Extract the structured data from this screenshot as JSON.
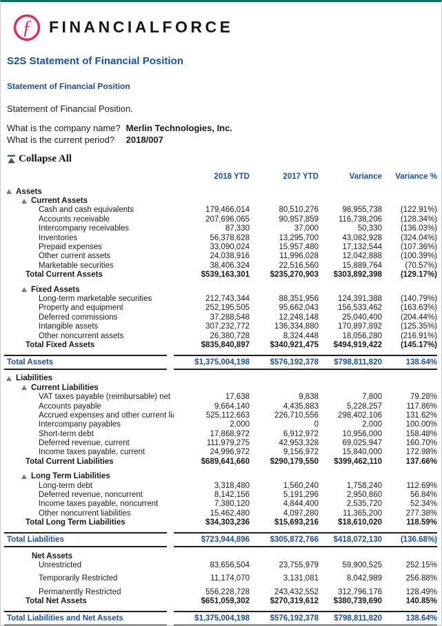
{
  "colors": {
    "accent_blue": "#1c4f9c",
    "logo_pink": "#e62a5c",
    "top_bar_teal": "#0b7267",
    "triangle_gray": "#6e7f91"
  },
  "brand": {
    "wordmark": "FINANCIALFORCE",
    "logo_icon": "financialforce-f-circle"
  },
  "page": {
    "title": "S2S Statement of Financial Position",
    "subtitle": "Statement of Financial Position",
    "description": "Statement of Financial Position.",
    "questions": [
      {
        "q": "What is the company name?",
        "a": "Merlin Technologies, Inc."
      },
      {
        "q": "What is the current period?",
        "a": "2018/007"
      }
    ],
    "collapse_all_label": "Collapse All"
  },
  "table": {
    "columns": [
      "2018 YTD",
      "2017 YTD",
      "Variance",
      "Variance %"
    ],
    "rows": [
      {
        "type": "section",
        "label": "Assets",
        "values": [
          "",
          "",
          "",
          ""
        ]
      },
      {
        "type": "subsection",
        "label": "Current Assets",
        "values": [
          "",
          "",
          "",
          ""
        ]
      },
      {
        "type": "item",
        "label": "Cash and cash equivalents",
        "values": [
          "179,466,014",
          "80,510,276",
          "98,955,738",
          "(122.91%)"
        ]
      },
      {
        "type": "item",
        "label": "Accounts receivable",
        "values": [
          "207,696,065",
          "90,957,859",
          "116,738,206",
          "(128.34%)"
        ]
      },
      {
        "type": "item",
        "label": "Intercompany receivables",
        "values": [
          "87,330",
          "37,000",
          "50,330",
          "(136.03%)"
        ]
      },
      {
        "type": "item",
        "label": "Inventories",
        "values": [
          "56,378,628",
          "13,295,700",
          "43,082,928",
          "(324.04%)"
        ]
      },
      {
        "type": "item",
        "label": "Prepaid expenses",
        "values": [
          "33,090,024",
          "15,957,480",
          "17,132,544",
          "(107.36%)"
        ]
      },
      {
        "type": "item",
        "label": "Other current assets",
        "values": [
          "24,038,916",
          "11,996,028",
          "12,042,888",
          "(100.39%)"
        ]
      },
      {
        "type": "item",
        "label": "Marketable securities",
        "values": [
          "38,406,324",
          "22,516,560",
          "15,889,764",
          "(70.57%)"
        ]
      },
      {
        "type": "total",
        "label": "Total Current Assets",
        "values": [
          "$539,163,301",
          "$235,270,903",
          "$303,892,398",
          "(129.17%)"
        ]
      },
      {
        "type": "spacer"
      },
      {
        "type": "subsection",
        "label": "Fixed Assets",
        "values": [
          "",
          "",
          "",
          ""
        ]
      },
      {
        "type": "item",
        "label": "Long-term marketable securities",
        "values": [
          "212,743,344",
          "88,351,956",
          "124,391,388",
          "(140.79%)"
        ]
      },
      {
        "type": "item",
        "label": "Property and equipment",
        "values": [
          "252,195,505",
          "95,662,043",
          "156,533,462",
          "(163.63%)"
        ]
      },
      {
        "type": "item",
        "label": "Deferred commissions",
        "values": [
          "37,288,548",
          "12,248,148",
          "25,040,400",
          "(204.44%)"
        ]
      },
      {
        "type": "item",
        "label": "Intangible assets",
        "values": [
          "307,232,772",
          "136,334,880",
          "170,897,892",
          "(125.35%)"
        ]
      },
      {
        "type": "item",
        "label": "Other noncurrent assets",
        "values": [
          "26,380,728",
          "8,324,448",
          "18,056,280",
          "(216.91%)"
        ]
      },
      {
        "type": "total",
        "label": "Total Fixed Assets",
        "values": [
          "$835,840,897",
          "$340,921,475",
          "$494,919,422",
          "(145.17%)"
        ]
      },
      {
        "type": "grand",
        "label": "Total Assets",
        "values": [
          "$1,375,004,198",
          "$576,192,378",
          "$798,811,820",
          "138.64%"
        ]
      },
      {
        "type": "section",
        "label": "Liabilities",
        "values": [
          "",
          "",
          "",
          ""
        ]
      },
      {
        "type": "subsection",
        "label": "Current Liabilities",
        "values": [
          "",
          "",
          "",
          ""
        ]
      },
      {
        "type": "item",
        "label": "VAT taxes payable (reimbursable) net",
        "values": [
          "17,638",
          "9,838",
          "7,800",
          "79.28%"
        ]
      },
      {
        "type": "item",
        "label": "Accounts payable",
        "values": [
          "9,664,140",
          "4,435,883",
          "5,228,257",
          "117.86%"
        ]
      },
      {
        "type": "item",
        "label": "Accrued expenses and other current liabilities",
        "values": [
          "525,112,663",
          "226,710,556",
          "298,402,106",
          "131.62%"
        ]
      },
      {
        "type": "item",
        "label": "Intercompany payables",
        "values": [
          "2,000",
          "0",
          "2,000",
          "100.00%"
        ]
      },
      {
        "type": "item",
        "label": "Short-term debt",
        "values": [
          "17,868,972",
          "6,912,972",
          "10,956,000",
          "158.48%"
        ]
      },
      {
        "type": "item",
        "label": "Deferred revenue, current",
        "values": [
          "111,979,275",
          "42,953,328",
          "69,025,947",
          "160.70%"
        ]
      },
      {
        "type": "item",
        "label": "Income taxes payable, current",
        "values": [
          "24,996,972",
          "9,156,972",
          "15,840,000",
          "172.98%"
        ]
      },
      {
        "type": "total",
        "label": "Total Current Liabilities",
        "values": [
          "$689,641,660",
          "$290,179,550",
          "$399,462,110",
          "137.66%"
        ]
      },
      {
        "type": "spacer"
      },
      {
        "type": "subsection",
        "label": "Long Term Liabilities",
        "values": [
          "",
          "",
          "",
          ""
        ]
      },
      {
        "type": "item",
        "label": "Long-term debt",
        "values": [
          "3,318,480",
          "1,560,240",
          "1,758,240",
          "112.69%"
        ]
      },
      {
        "type": "item",
        "label": "Deferred revenue, noncurrent",
        "values": [
          "8,142,156",
          "5,191,296",
          "2,950,860",
          "56.84%"
        ]
      },
      {
        "type": "item",
        "label": "Income taxes payable, noncurrent",
        "values": [
          "7,380,120",
          "4,844,400",
          "2,535,720",
          "52.34%"
        ]
      },
      {
        "type": "item",
        "label": "Other noncurrent liabilities",
        "values": [
          "15,462,480",
          "4,097,280",
          "11,365,200",
          "277.38%"
        ]
      },
      {
        "type": "total",
        "label": "Total Long Term Liabilities",
        "values": [
          "$34,303,236",
          "$15,693,216",
          "$18,610,020",
          "118.59%"
        ]
      },
      {
        "type": "grand",
        "label": "Total Liabilities",
        "values": [
          "$723,944,896",
          "$305,872,766",
          "$418,072,130",
          "(136.68%)"
        ]
      },
      {
        "type": "group",
        "label": "Net Assets",
        "values": [
          "",
          "",
          "",
          ""
        ]
      },
      {
        "type": "item",
        "label": "Unrestricted",
        "values": [
          "83,656,504",
          "23,755,979",
          "59,900,525",
          "252.15%"
        ]
      },
      {
        "type": "item",
        "label": "Temporarily Restricted",
        "tall": true,
        "values": [
          "11,174,070",
          "3,131,081",
          "8,042,989",
          "256.88%"
        ]
      },
      {
        "type": "item",
        "label": "Permanently Restricted",
        "tall": true,
        "values": [
          "556,228,728",
          "243,432,552",
          "312,796,176",
          "128.49%"
        ]
      },
      {
        "type": "total",
        "label": "Total Net Assets",
        "values": [
          "$651,059,302",
          "$270,319,612",
          "$380,739,690",
          "140.85%"
        ]
      },
      {
        "type": "grand",
        "label": "Total Liabilities and Net Assets",
        "values": [
          "$1,375,004,198",
          "$576,192,378",
          "$798,811,820",
          "138.64%"
        ]
      }
    ]
  }
}
